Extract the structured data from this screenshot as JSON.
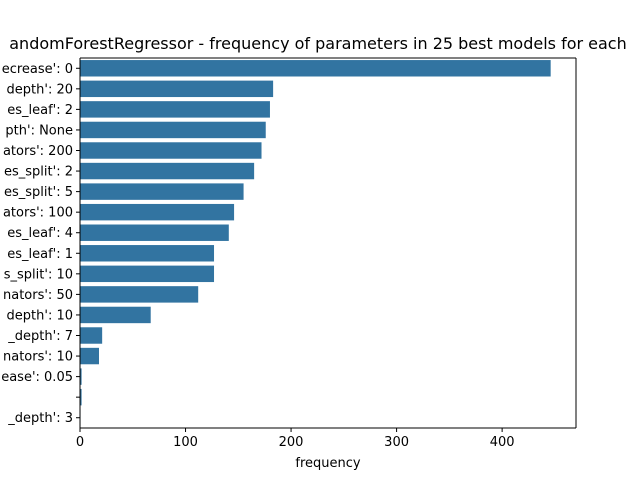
{
  "chart_data": {
    "type": "bar",
    "orientation": "horizontal",
    "title": "andomForestRegressor - frequency of parameters in 25 best models for each",
    "xlabel": "frequency",
    "ylabel": "",
    "xlim": [
      0,
      470
    ],
    "xticks": [
      0,
      100,
      200,
      300,
      400
    ],
    "grid": false,
    "bar_color": "#3274a1",
    "categories": [
      "ecrease': 0",
      "depth': 20",
      "es_leaf': 2",
      "pth': None",
      "ators': 200",
      "es_split': 2",
      "es_split': 5",
      "ators': 100",
      "es_leaf': 4",
      "es_leaf': 1",
      "s_split': 10",
      "nators': 50",
      "depth': 10",
      "_depth': 7",
      "nators': 10",
      "ease': 0.05",
      "",
      "_depth': 3"
    ],
    "values": [
      446,
      183,
      180,
      176,
      172,
      165,
      155,
      146,
      141,
      127,
      127,
      112,
      67,
      21,
      18,
      1.5,
      1.5,
      0.5
    ]
  }
}
